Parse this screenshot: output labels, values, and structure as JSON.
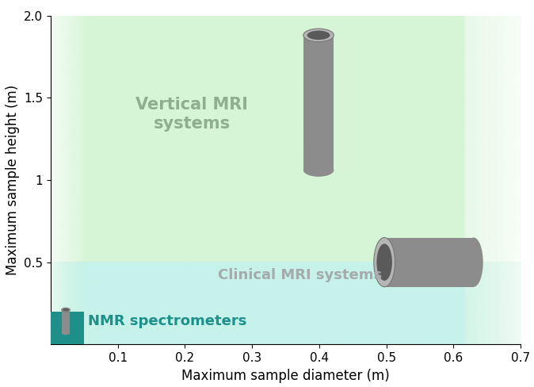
{
  "chart_data": {
    "type": "regions",
    "x_label": "Maximum sample diameter (m)",
    "y_label": "Maximum sample height (m)",
    "xlim": [
      0,
      0.7
    ],
    "xticks": [
      0.1,
      0.2,
      0.3,
      0.4,
      0.5,
      0.6,
      0.7
    ],
    "ylim": [
      0,
      2.0
    ],
    "yticks": [
      0.5,
      1,
      1.5,
      2.0
    ],
    "grid": false,
    "series": [
      {
        "name": "Vertical MRI\nsystems",
        "color": "#d6f5d6",
        "label_color": "#8fae8f",
        "diameter": 0.7,
        "height": 2.0
      },
      {
        "name": "Clinical MRI systems",
        "color": "#c6f2ea",
        "label_color": "#a3abab",
        "diameter": 0.7,
        "height": 0.5
      },
      {
        "name": "NMR spectrometers",
        "color": "#1f8f8a",
        "label_color": "#1f8f8a",
        "diameter": 0.05,
        "height": 0.2
      }
    ]
  }
}
